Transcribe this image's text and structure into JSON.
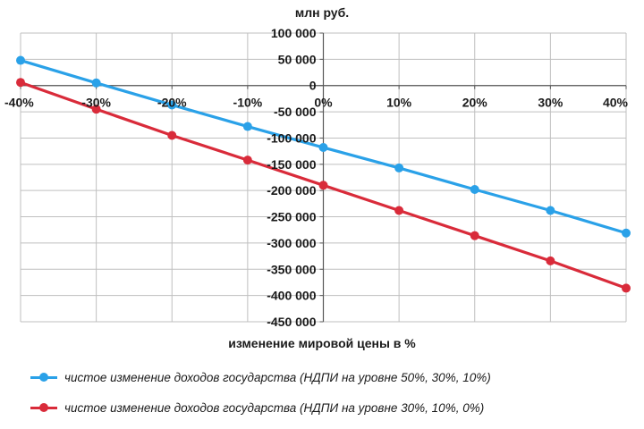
{
  "chart_data": {
    "type": "line",
    "unit_label": "млн  руб.",
    "xlabel": "изменение мировой цены в %",
    "categories": [
      "-40%",
      "-30%",
      "-20%",
      "-10%",
      "0%",
      "10%",
      "20%",
      "30%",
      "40%"
    ],
    "y_tick_labels": [
      "100 000",
      "50 000",
      "0",
      "-50 000",
      "-100 000",
      "-150 000",
      "-200 000",
      "-250 000",
      "-300 000",
      "-350 000",
      "-400 000",
      "-450 000"
    ],
    "y_ticks": [
      100000,
      50000,
      0,
      -50000,
      -100000,
      -150000,
      -200000,
      -250000,
      -300000,
      -350000,
      -400000,
      -450000
    ],
    "ylim": [
      -450000,
      100000
    ],
    "grid": true,
    "series": [
      {
        "name": "чистое изменение доходов государства (НДПИ на уровне 50%, 30%, 10%)",
        "color": "#2aa1e8",
        "values": [
          48000,
          5000,
          -37000,
          -78000,
          -118000,
          -157000,
          -198000,
          -238000,
          -281000
        ]
      },
      {
        "name": "чистое изменение доходов государства (НДПИ на уровне 30%, 10%, 0%)",
        "color": "#d92b3a",
        "values": [
          6000,
          -45000,
          -95000,
          -142000,
          -190000,
          -238000,
          -286000,
          -334000,
          -386000
        ]
      }
    ]
  }
}
